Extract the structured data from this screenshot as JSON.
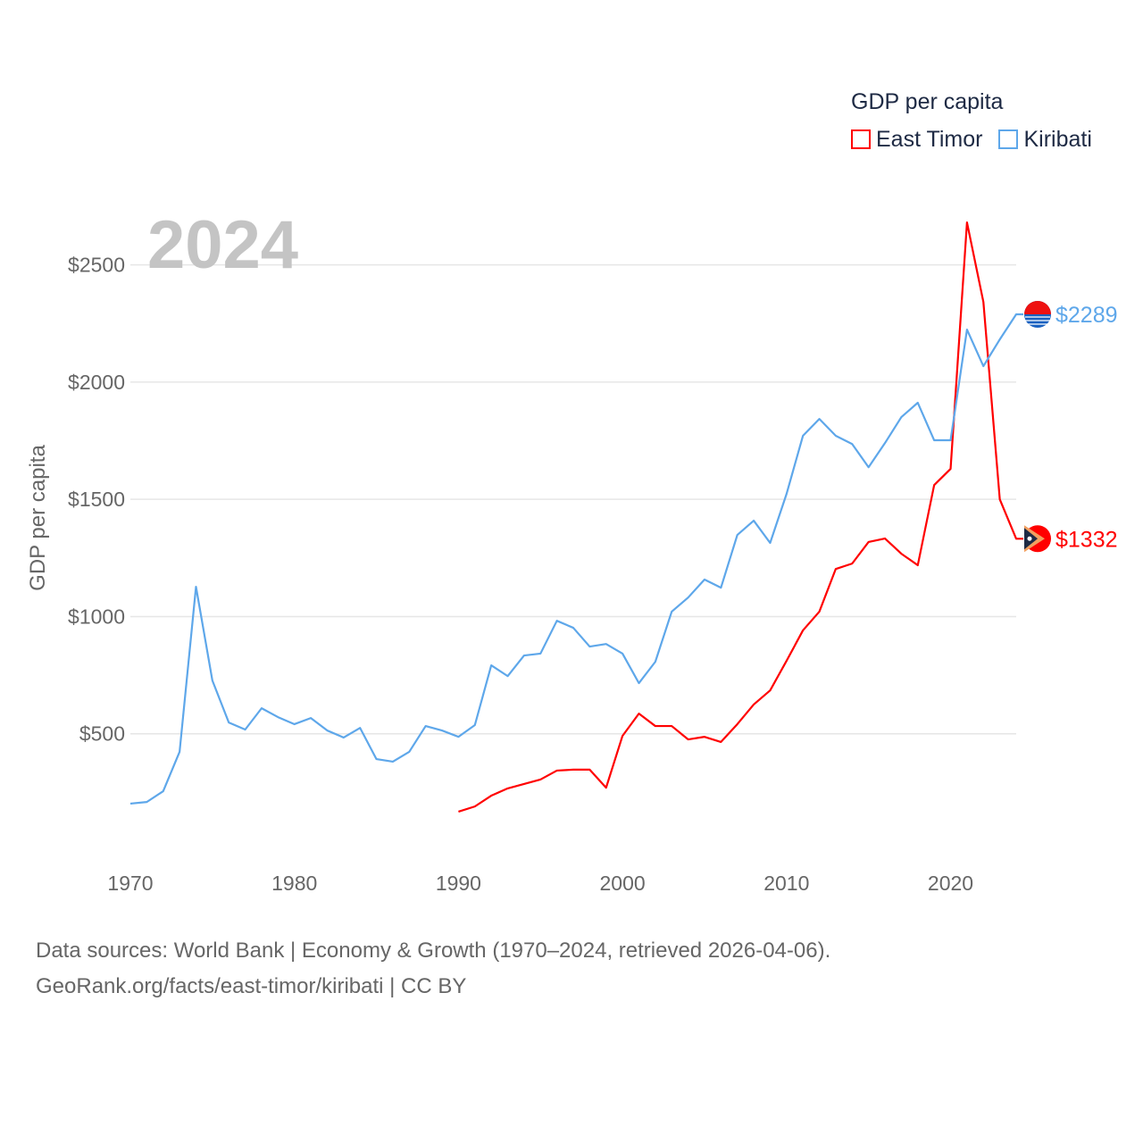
{
  "chart_data": {
    "type": "line",
    "legend_title": "GDP per capita",
    "ylabel": "GDP per capita",
    "year_label": "2024",
    "xlim": [
      1970,
      2024
    ],
    "ylim": [
      0,
      2750
    ],
    "x_ticks": [
      1970,
      1980,
      1990,
      2000,
      2010,
      2020
    ],
    "y_ticks": [
      500,
      1000,
      1500,
      2000,
      2500
    ],
    "y_tick_labels": [
      "$500",
      "$1000",
      "$1500",
      "$2000",
      "$2500"
    ],
    "legend_placement": "top-right",
    "series": [
      {
        "name": "East Timor",
        "color": "#ff0000",
        "end_label": "$1332",
        "start": 1990,
        "values": [
          168,
          190,
          236,
          267,
          286,
          305,
          343,
          347,
          347,
          270,
          491,
          586,
          533,
          533,
          476,
          487,
          465,
          541,
          625,
          685,
          811,
          941,
          1021,
          1203,
          1226,
          1318,
          1333,
          1268,
          1219,
          1561,
          1630,
          2681,
          2342,
          1500,
          1332
        ]
      },
      {
        "name": "Kiribati",
        "color": "#5ea7ea",
        "end_label": "$2289",
        "start": 1970,
        "values": [
          202,
          209,
          255,
          423,
          1127,
          727,
          548,
          518,
          609,
          571,
          541,
          567,
          514,
          484,
          525,
          392,
          381,
          423,
          533,
          514,
          487,
          537,
          792,
          746,
          834,
          842,
          982,
          952,
          872,
          883,
          842,
          716,
          807,
          1021,
          1081,
          1158,
          1123,
          1348,
          1409,
          1314,
          1523,
          1771,
          1843,
          1771,
          1736,
          1637,
          1740,
          1851,
          1912,
          1752,
          1752,
          2224,
          2068,
          2182,
          2289
        ]
      }
    ]
  },
  "footer": {
    "line1": "Data sources: World Bank | Economy & Growth (1970–2024, retrieved 2026-04-06).",
    "line2": "GeoRank.org/facts/east-timor/kiribati | CC BY"
  }
}
